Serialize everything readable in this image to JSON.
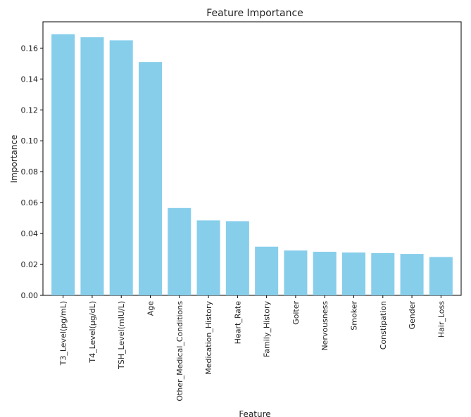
{
  "chart_data": {
    "type": "bar",
    "title": "Feature Importance",
    "xlabel": "Feature",
    "ylabel": "Importance",
    "categories": [
      "T3_Level(pg/mL)",
      "T4_Level(μg/dL)",
      "TSH_Level(mIU/L)",
      "Age",
      "Other_Medical_Conditions",
      "Medication_History",
      "Heart_Rate",
      "Family_History",
      "Goiter",
      "Nervousness",
      "Smoker",
      "Constipation",
      "Gender",
      "Hair_Loss"
    ],
    "values": [
      0.169,
      0.167,
      0.165,
      0.151,
      0.0565,
      0.0485,
      0.048,
      0.0315,
      0.029,
      0.0282,
      0.0277,
      0.0273,
      0.0268,
      0.0248
    ],
    "ylim": [
      0,
      0.177
    ],
    "yticks": [
      "0.00",
      "0.02",
      "0.04",
      "0.06",
      "0.08",
      "0.10",
      "0.12",
      "0.14",
      "0.16"
    ],
    "bar_color": "#87ceeb",
    "grid": false,
    "legend": "none"
  }
}
